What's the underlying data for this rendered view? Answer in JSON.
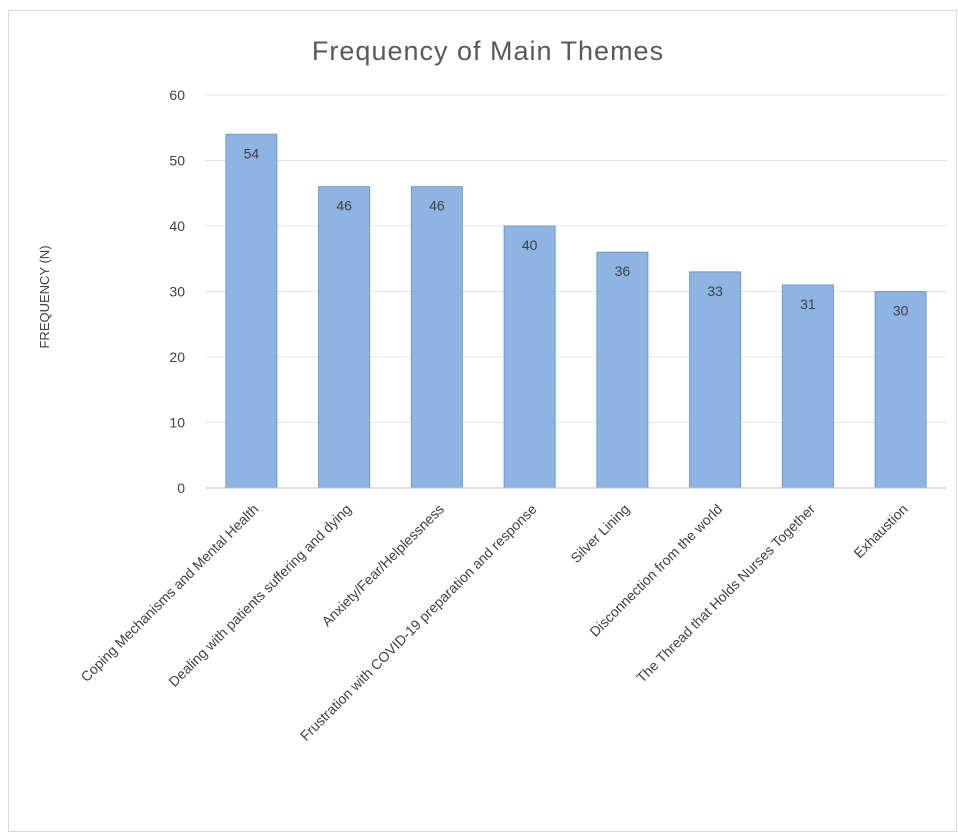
{
  "chart_data": {
    "type": "bar",
    "title": "Frequency of Main Themes",
    "xlabel": "",
    "ylabel": "FREQUENCY (N)",
    "ylim": [
      0,
      60
    ],
    "yticks": [
      0,
      10,
      20,
      30,
      40,
      50,
      60
    ],
    "grid": true,
    "legend": "none",
    "bar_color": "#8db4e2",
    "bar_edge_color": "#6a9bd1",
    "categories": [
      "Coping Mechanisms and Mental Health",
      "Dealing with patients  suffering and dying",
      "Anxiety/Fear/Helplessness",
      "Frustration with COVID-19 preparation and response",
      "Silver  Lining",
      "Disconnection from the world",
      "The Thread  that Holds Nurses Together",
      "Exhaustion"
    ],
    "values": [
      54,
      46,
      46,
      40,
      36,
      33,
      31,
      30
    ]
  }
}
